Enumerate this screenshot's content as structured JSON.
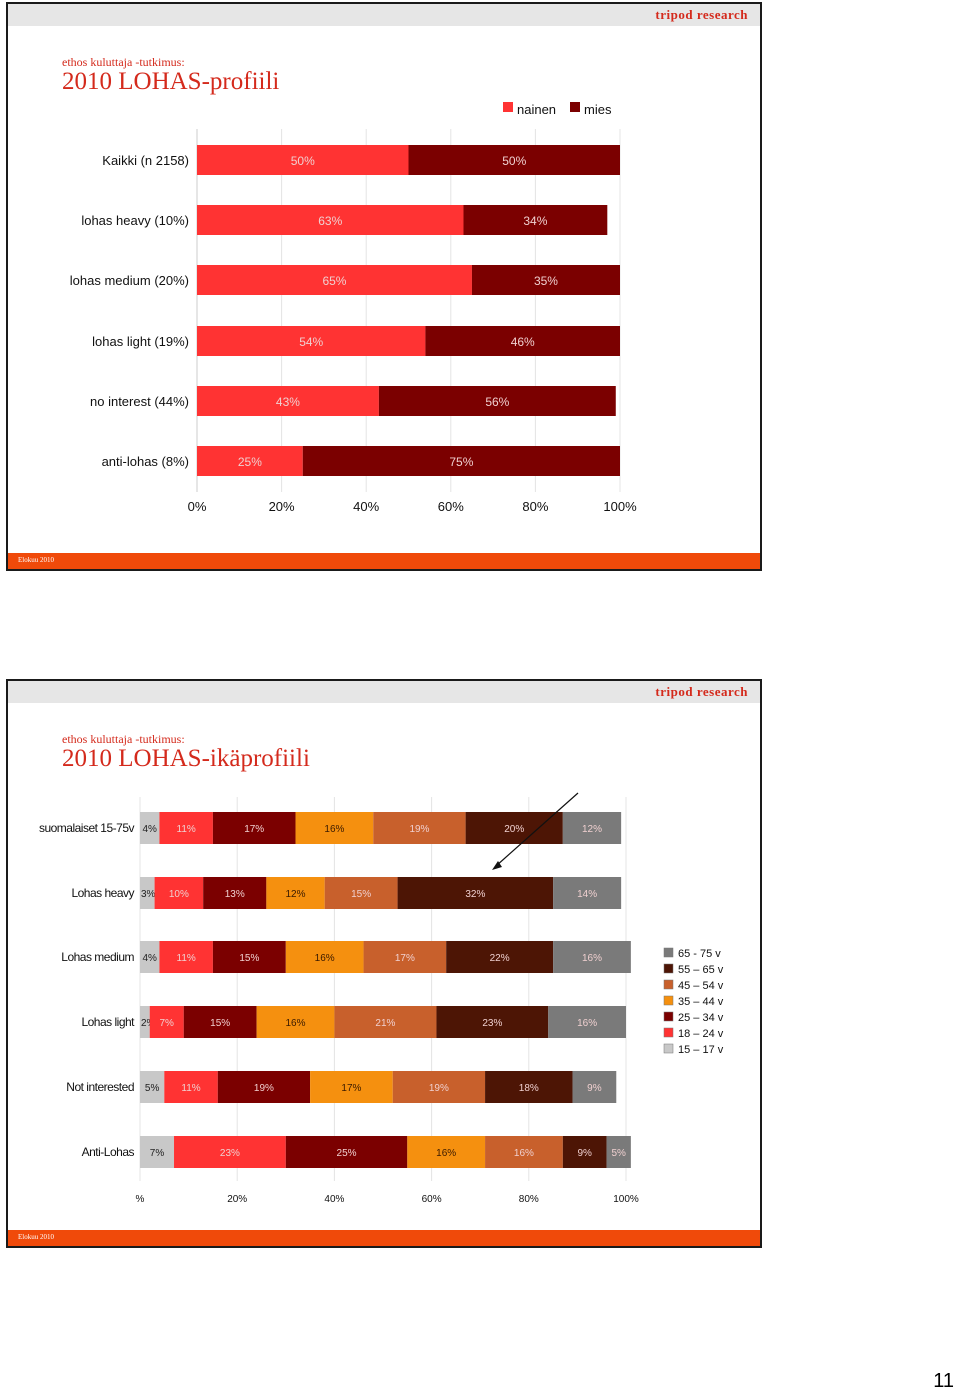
{
  "colors": {
    "brand": "#d42a1c",
    "top_bar": "#e6e6e6",
    "bottom_bar": "#f04a0a"
  },
  "page_number": "11",
  "slide1": {
    "brand": "tripod research",
    "subtitle": "ethos kuluttaja -tutkimus:",
    "title": "2010 LOHAS-profiili",
    "footer": "Elokuu 2010"
  },
  "slide2": {
    "brand": "tripod research",
    "subtitle": "ethos kuluttaja -tutkimus:",
    "title": "2010 LOHAS-ikäprofiili",
    "footer": "Elokuu 2010"
  },
  "chart_data": [
    {
      "type": "bar",
      "orientation": "horizontal-stacked-100",
      "categories": [
        "Kaikki (n 2158)",
        "lohas heavy (10%)",
        "lohas medium (20%)",
        "lohas light (19%)",
        "no interest (44%)",
        "anti-lohas (8%)"
      ],
      "series": [
        {
          "name": "nainen",
          "color": "#ff3333",
          "values": [
            50,
            63,
            65,
            54,
            43,
            25
          ]
        },
        {
          "name": "mies",
          "color": "#7b0000",
          "values": [
            50,
            34,
            35,
            46,
            56,
            75
          ]
        }
      ],
      "data_labels": [
        [
          "50%",
          "50%"
        ],
        [
          "63%",
          "34%"
        ],
        [
          "65%",
          "35%"
        ],
        [
          "54%",
          "46%"
        ],
        [
          "43%",
          "56%"
        ],
        [
          "25%",
          "75%"
        ]
      ],
      "x_ticks": [
        "0%",
        "20%",
        "40%",
        "60%",
        "80%",
        "100%"
      ],
      "xlim": [
        0,
        100
      ],
      "legend": "top-right",
      "grid": true
    },
    {
      "type": "bar",
      "orientation": "horizontal-stacked-100",
      "categories": [
        "suomalaiset 15-75v",
        "Lohas heavy",
        "Lohas medium",
        "Lohas light",
        "Not interested",
        "Anti-Lohas"
      ],
      "series": [
        {
          "name": "15 – 17 v",
          "color": "#c8c8c8",
          "values": [
            4,
            3,
            4,
            2,
            5,
            7
          ]
        },
        {
          "name": "18 – 24 v",
          "color": "#ff3333",
          "values": [
            11,
            10,
            11,
            7,
            11,
            23
          ]
        },
        {
          "name": "25 – 34 v",
          "color": "#7b0000",
          "values": [
            17,
            13,
            15,
            15,
            19,
            25
          ]
        },
        {
          "name": "35 – 44 v",
          "color": "#f5900f",
          "values": [
            16,
            12,
            16,
            16,
            17,
            16
          ]
        },
        {
          "name": "45 – 54 v",
          "color": "#c8602c",
          "values": [
            19,
            15,
            17,
            21,
            19,
            16
          ]
        },
        {
          "name": "55 – 65 v",
          "color": "#4d1505",
          "values": [
            20,
            32,
            22,
            23,
            18,
            9
          ]
        },
        {
          "name": "65 - 75 v",
          "color": "#7a7a7a",
          "values": [
            12,
            14,
            16,
            16,
            9,
            5
          ]
        }
      ],
      "x_ticks": [
        "%",
        "20%",
        "40%",
        "60%",
        "80%",
        "100%"
      ],
      "xlim": [
        0,
        100
      ],
      "legend": "right",
      "grid": true,
      "legend_order": [
        "65 - 75 v",
        "55 – 65 v",
        "45 – 54 v",
        "35 – 44 v",
        "25 – 34 v",
        "18 – 24 v",
        "15 – 17 v"
      ]
    }
  ]
}
